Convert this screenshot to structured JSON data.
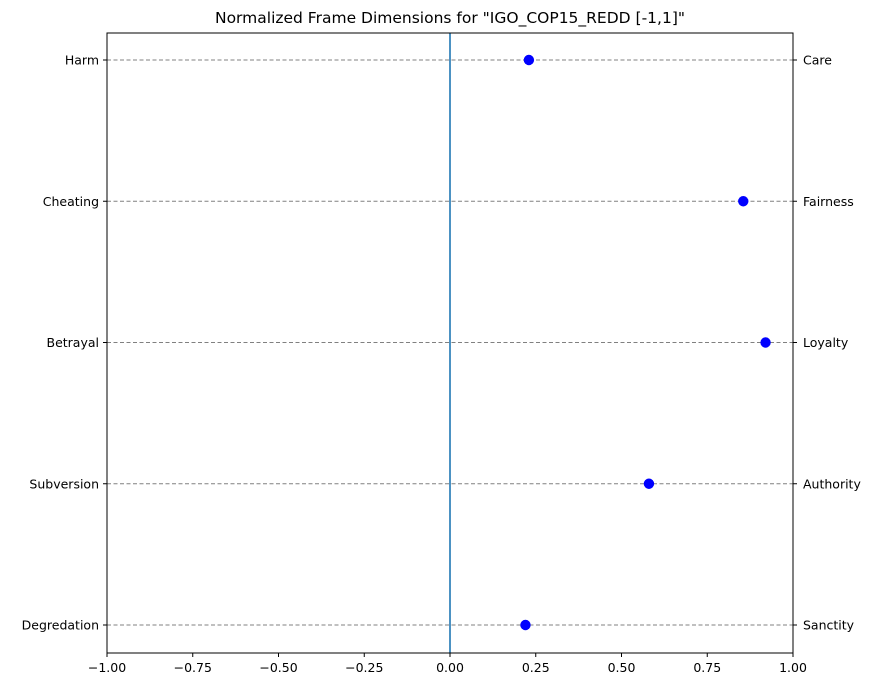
{
  "chart_data": {
    "type": "scatter",
    "title": "Normalized Frame Dimensions for \"IGO_COP15_REDD [-1,1]\"",
    "xlabel": "",
    "ylabel": "",
    "xlim": [
      -1.0,
      1.0
    ],
    "x_ticks": [
      "−1.00",
      "−0.75",
      "−0.50",
      "−0.25",
      "0.00",
      "0.25",
      "0.50",
      "0.75",
      "1.00"
    ],
    "x_tick_values": [
      -1.0,
      -0.75,
      -0.5,
      -0.25,
      0.0,
      0.25,
      0.5,
      0.75,
      1.0
    ],
    "left_labels": [
      "Harm",
      "Cheating",
      "Betrayal",
      "Subversion",
      "Degredation"
    ],
    "right_labels": [
      "Care",
      "Fairness",
      "Loyalty",
      "Authority",
      "Sanctity"
    ],
    "values": [
      0.23,
      0.855,
      0.92,
      0.58,
      0.22
    ],
    "reference_line_x": 0.0,
    "grid": "horizontal dashed",
    "colors": {
      "points": "#0000ff",
      "reference_line": "#1f77b4",
      "grid": "#808080"
    }
  }
}
